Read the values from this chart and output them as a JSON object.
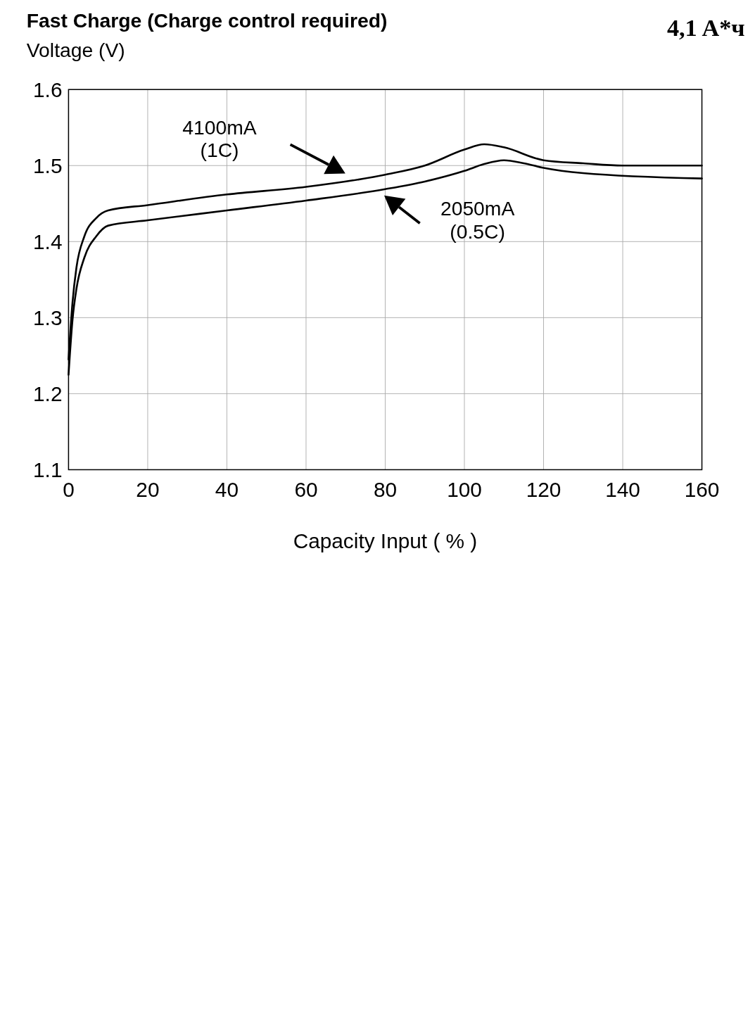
{
  "chart_data": {
    "type": "line",
    "title": "Fast Charge (Charge control required)",
    "subtitle": "4,1 A*ч",
    "xlabel": "Capacity Input ( % )",
    "ylabel": "Voltage (V)",
    "xlim": [
      0,
      160
    ],
    "xticks": [
      0,
      20,
      40,
      60,
      80,
      100,
      120,
      140,
      160
    ],
    "ylim": [
      1.1,
      1.6
    ],
    "yticks": [
      1.1,
      1.2,
      1.3,
      1.4,
      1.5,
      1.6
    ],
    "grid": true,
    "marker": "none",
    "line_style": "solid",
    "series": [
      {
        "name": "4100mA (1C)",
        "color": "#000000",
        "x": [
          0,
          1,
          2,
          4,
          7,
          10,
          20,
          40,
          60,
          80,
          90,
          100,
          105,
          110,
          120,
          130,
          140,
          160
        ],
        "values": [
          1.245,
          1.32,
          1.366,
          1.407,
          1.431,
          1.441,
          1.448,
          1.462,
          1.472,
          1.488,
          1.5,
          1.521,
          1.528,
          1.524,
          1.507,
          1.503,
          1.5,
          1.5
        ]
      },
      {
        "name": "2050mA (0.5C)",
        "color": "#000000",
        "x": [
          0,
          1,
          2,
          4,
          7,
          10,
          20,
          40,
          60,
          80,
          90,
          100,
          105,
          110,
          115,
          120,
          130,
          160
        ],
        "values": [
          1.225,
          1.297,
          1.338,
          1.379,
          1.407,
          1.421,
          1.428,
          1.441,
          1.454,
          1.469,
          1.479,
          1.493,
          1.502,
          1.507,
          1.503,
          1.497,
          1.49,
          1.483
        ]
      }
    ]
  }
}
